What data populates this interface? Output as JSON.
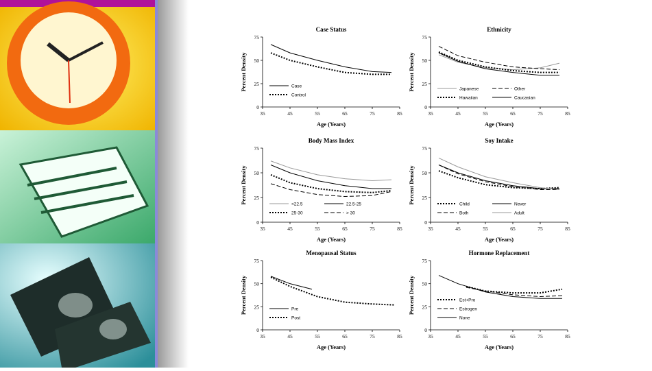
{
  "chart_data": [
    {
      "type": "line",
      "title": "Case Status",
      "xlabel": "Age (Years)",
      "ylabel": "Percent Density",
      "xlim": [
        35,
        85
      ],
      "ylim": [
        0,
        75
      ],
      "xticks": [
        35,
        45,
        55,
        65,
        75,
        85
      ],
      "yticks": [
        0,
        25,
        50,
        75
      ],
      "series": [
        {
          "name": "Case",
          "color": "#000000",
          "dash": "solid",
          "x": [
            38,
            45,
            55,
            65,
            75,
            82
          ],
          "values": [
            67,
            58,
            50,
            43,
            38,
            37
          ]
        },
        {
          "name": "Control",
          "color": "#000000",
          "dash": "dotted",
          "x": [
            38,
            45,
            55,
            65,
            75,
            82
          ],
          "values": [
            58,
            50,
            43,
            37,
            35,
            35
          ]
        }
      ]
    },
    {
      "type": "line",
      "title": "Ethnicity",
      "xlabel": "Age (Years)",
      "ylabel": "Percent Density",
      "xlim": [
        35,
        85
      ],
      "ylim": [
        0,
        75
      ],
      "xticks": [
        35,
        45,
        55,
        65,
        75,
        85
      ],
      "yticks": [
        0,
        25,
        50,
        75
      ],
      "series": [
        {
          "name": "Japanese",
          "color": "#999999",
          "dash": "solid",
          "x": [
            38,
            45,
            55,
            65,
            75,
            82
          ],
          "values": [
            56,
            48,
            42,
            40,
            42,
            47
          ]
        },
        {
          "name": "Other",
          "color": "#000000",
          "dash": "dashed",
          "x": [
            38,
            45,
            55,
            65,
            75,
            82
          ],
          "values": [
            65,
            55,
            48,
            43,
            41,
            40
          ]
        },
        {
          "name": "Hawaiian",
          "color": "#000000",
          "dash": "dotted",
          "x": [
            38,
            45,
            55,
            65,
            75,
            82
          ],
          "values": [
            59,
            50,
            43,
            39,
            37,
            37
          ]
        },
        {
          "name": "Caucasian",
          "color": "#000000",
          "dash": "solid",
          "x": [
            38,
            45,
            55,
            65,
            75,
            82
          ],
          "values": [
            58,
            49,
            41,
            37,
            34,
            34
          ]
        }
      ]
    },
    {
      "type": "line",
      "title": "Body Mass Index",
      "xlabel": "Age (Years)",
      "ylabel": "Percent Density",
      "xlim": [
        35,
        85
      ],
      "ylim": [
        0,
        75
      ],
      "xticks": [
        35,
        45,
        55,
        65,
        75,
        85
      ],
      "yticks": [
        0,
        25,
        50,
        75
      ],
      "series": [
        {
          "name": "<22.5",
          "color": "#999999",
          "dash": "solid",
          "x": [
            38,
            45,
            55,
            65,
            75,
            82
          ],
          "values": [
            62,
            55,
            48,
            44,
            42,
            43
          ]
        },
        {
          "name": "22.5-25",
          "color": "#000000",
          "dash": "solid",
          "x": [
            38,
            45,
            55,
            65,
            75,
            82
          ],
          "values": [
            58,
            50,
            42,
            37,
            34,
            34
          ]
        },
        {
          "name": "25-30",
          "color": "#000000",
          "dash": "dotted",
          "x": [
            38,
            45,
            55,
            65,
            75,
            82
          ],
          "values": [
            48,
            40,
            34,
            31,
            30,
            32
          ]
        },
        {
          "name": "> 30",
          "color": "#000000",
          "dash": "dashed",
          "x": [
            38,
            45,
            55,
            65,
            75,
            82
          ],
          "values": [
            39,
            33,
            28,
            26,
            27,
            31
          ]
        }
      ]
    },
    {
      "type": "line",
      "title": "Soy Intake",
      "xlabel": "Age (Years)",
      "ylabel": "Percent Density",
      "xlim": [
        35,
        85
      ],
      "ylim": [
        0,
        75
      ],
      "xticks": [
        35,
        45,
        55,
        65,
        75,
        85
      ],
      "yticks": [
        0,
        25,
        50,
        75
      ],
      "series": [
        {
          "name": "Child",
          "color": "#000000",
          "dash": "dotted",
          "x": [
            38,
            45,
            55,
            65,
            75,
            82
          ],
          "values": [
            52,
            45,
            38,
            35,
            34,
            35
          ]
        },
        {
          "name": "Never",
          "color": "#000000",
          "dash": "solid",
          "x": [
            38,
            45,
            55,
            65,
            75,
            82
          ],
          "values": [
            58,
            50,
            42,
            37,
            34,
            34
          ]
        },
        {
          "name": "Both",
          "color": "#000000",
          "dash": "dashed",
          "x": [
            38,
            45,
            55,
            65,
            75,
            82
          ],
          "values": [
            58,
            49,
            41,
            36,
            33,
            33
          ]
        },
        {
          "name": "Adult",
          "color": "#999999",
          "dash": "solid",
          "x": [
            38,
            45,
            55,
            65,
            75,
            82
          ],
          "values": [
            65,
            56,
            46,
            40,
            35,
            33
          ]
        }
      ]
    },
    {
      "type": "line",
      "title": "Menopausal Status",
      "xlabel": "Age (Years)",
      "ylabel": "Percent Density",
      "xlim": [
        35,
        85
      ],
      "ylim": [
        0,
        75
      ],
      "xticks": [
        35,
        45,
        55,
        65,
        75,
        85
      ],
      "yticks": [
        0,
        25,
        50,
        75
      ],
      "series": [
        {
          "name": "Pre",
          "color": "#000000",
          "dash": "solid",
          "x": [
            38,
            45,
            53
          ],
          "values": [
            58,
            50,
            44
          ]
        },
        {
          "name": "Post",
          "color": "#000000",
          "dash": "dotted",
          "x": [
            38,
            45,
            55,
            65,
            75,
            83
          ],
          "values": [
            57,
            47,
            36,
            30,
            28,
            27
          ]
        }
      ]
    },
    {
      "type": "line",
      "title": "Hormone Replacement",
      "xlabel": "Age (Years)",
      "ylabel": "Percent Density",
      "xlim": [
        35,
        85
      ],
      "ylim": [
        0,
        75
      ],
      "xticks": [
        35,
        45,
        55,
        65,
        75,
        85
      ],
      "yticks": [
        0,
        25,
        50,
        75
      ],
      "series": [
        {
          "name": "Est+Pro",
          "color": "#000000",
          "dash": "dotted",
          "x": [
            48,
            55,
            65,
            75,
            83
          ],
          "values": [
            47,
            42,
            40,
            40,
            44
          ]
        },
        {
          "name": "Estrogen",
          "color": "#000000",
          "dash": "dashed",
          "x": [
            48,
            55,
            65,
            75,
            83
          ],
          "values": [
            46,
            42,
            38,
            36,
            37
          ]
        },
        {
          "name": "None",
          "color": "#000000",
          "dash": "solid",
          "x": [
            38,
            45,
            55,
            65,
            75,
            83
          ],
          "values": [
            59,
            50,
            41,
            36,
            34,
            34
          ]
        }
      ]
    }
  ]
}
